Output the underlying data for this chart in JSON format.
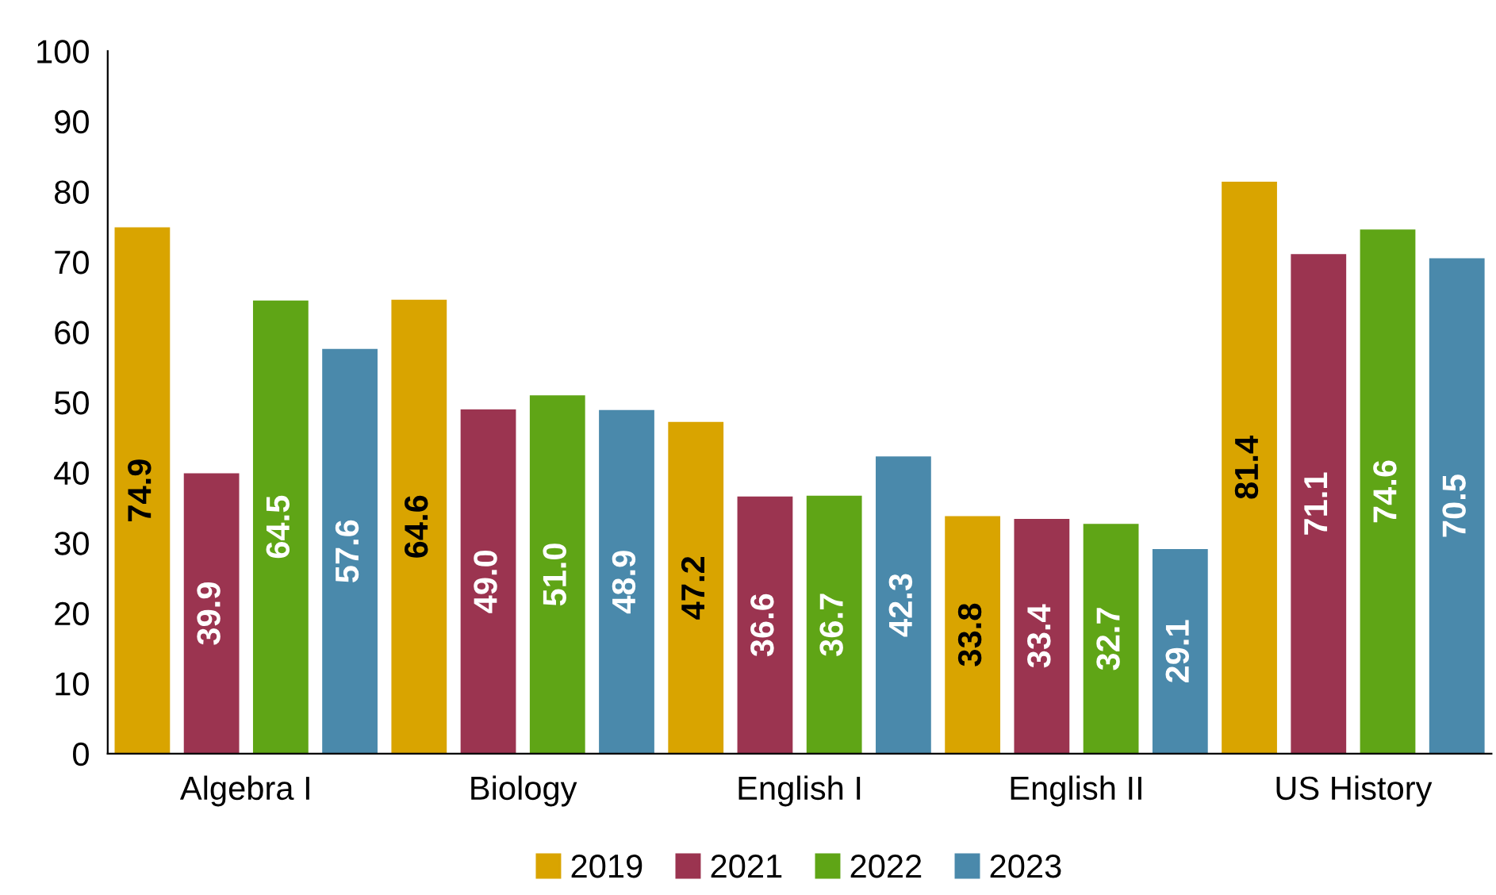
{
  "chart_data": {
    "type": "bar",
    "categories": [
      "Algebra I",
      "Biology",
      "English I",
      "English II",
      "US History"
    ],
    "series": [
      {
        "name": "2019",
        "color": "#d9a400",
        "values": [
          74.9,
          64.6,
          47.2,
          33.8,
          81.4
        ],
        "value_labels": [
          "74.9",
          "64.6",
          "47.2",
          "33.8",
          "81.4"
        ]
      },
      {
        "name": "2021",
        "color": "#9b3450",
        "values": [
          39.9,
          49.0,
          36.6,
          33.4,
          71.1
        ],
        "value_labels": [
          "39.9",
          "49.0",
          "36.6",
          "33.4",
          "71.1"
        ]
      },
      {
        "name": "2022",
        "color": "#5fa516",
        "values": [
          64.5,
          51.0,
          36.7,
          32.7,
          74.6
        ],
        "value_labels": [
          "64.5",
          "51.0",
          "36.7",
          "32.7",
          "74.6"
        ]
      },
      {
        "name": "2023",
        "color": "#4a89ab",
        "values": [
          57.6,
          48.9,
          42.3,
          29.1,
          70.5
        ],
        "value_labels": [
          "57.6",
          "48.9",
          "42.3",
          "29.1",
          "70.5"
        ]
      }
    ],
    "ylim": [
      0,
      100
    ],
    "yticks": [
      0,
      10,
      20,
      30,
      40,
      50,
      60,
      70,
      80,
      90,
      100
    ],
    "grid": false,
    "legend": "bottom"
  }
}
